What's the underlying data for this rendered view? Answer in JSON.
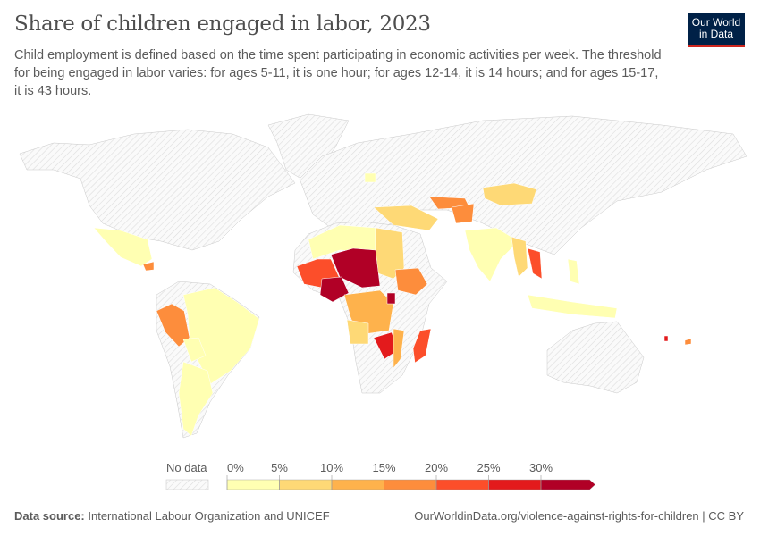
{
  "header": {
    "title": "Share of children engaged in labor, 2023",
    "subtitle": "Child employment is defined based on the time spent participating in economic activities per week. The threshold for being engaged in labor varies: for ages 5-11, it is one hour; for ages 12-14, it is 14 hours; and for ages 15-17, it is 43 hours.",
    "logo": [
      "Our World",
      "in Data"
    ]
  },
  "legend": {
    "no_data_label": "No data",
    "ticks": [
      "0%",
      "5%",
      "10%",
      "15%",
      "20%",
      "25%",
      "30%"
    ],
    "colors": [
      "#ffffb2",
      "#fed976",
      "#feb24c",
      "#fd8d3c",
      "#fc4e2a",
      "#e31a1c",
      "#b10026"
    ],
    "no_data_color": "#e8e8e8"
  },
  "footer": {
    "source_label": "Data source:",
    "source": "International Labour Organization and UNICEF",
    "url_license": "OurWorldinData.org/violence-against-rights-for-children | CC BY"
  }
}
